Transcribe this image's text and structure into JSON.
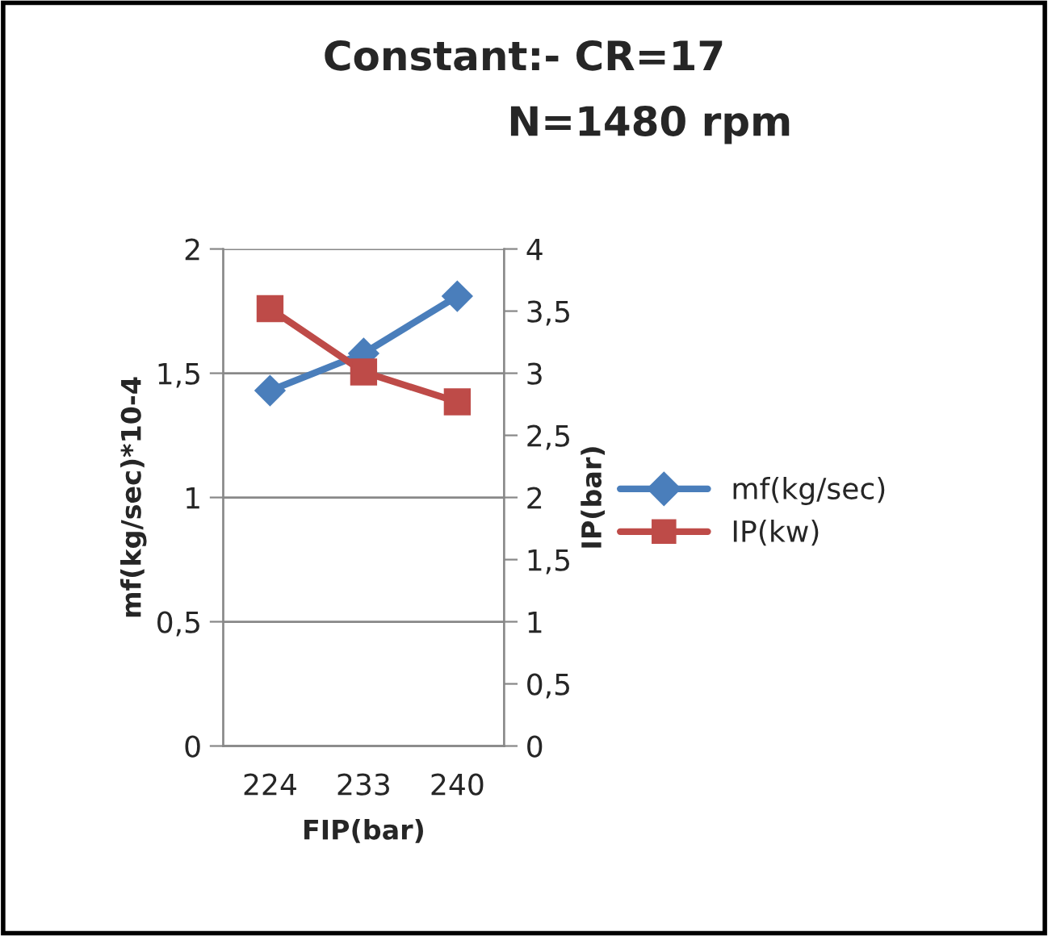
{
  "chart_data": {
    "type": "line",
    "title": "Constant:- CR=17",
    "subtitle": "N=1480 rpm",
    "xlabel": "FIP(bar)",
    "ylabel": "mf(kg/sec)*10-4",
    "y2label": "IP(bar)",
    "categories": [
      "224",
      "233",
      "240"
    ],
    "series": [
      {
        "name": "mf(kg/sec)",
        "color": "#4a7ebb",
        "values": [
          1.43,
          1.58,
          1.81
        ],
        "marker": "diamond"
      },
      {
        "name": "IP(kw)",
        "color": "#be4b48",
        "values": [
          3.52,
          3.01,
          2.77
        ],
        "axis": "y2",
        "marker": "square"
      }
    ],
    "ylim": [
      0,
      2
    ],
    "yticks": [
      0,
      {
        "value": 0.5,
        "label": "0,5"
      },
      1,
      {
        "value": 1.5,
        "label": "1,5"
      },
      2
    ],
    "y2lim": [
      0,
      4
    ],
    "y2ticks": [
      0,
      {
        "value": 0.5,
        "label": "0,5"
      },
      1,
      {
        "value": 1.5,
        "label": "1,5"
      },
      2,
      {
        "value": 2.5,
        "label": "2,5"
      },
      3,
      {
        "value": 3.5,
        "label": "3,5"
      },
      4
    ],
    "grid": "y",
    "legend": "right",
    "line_style": "solid"
  }
}
